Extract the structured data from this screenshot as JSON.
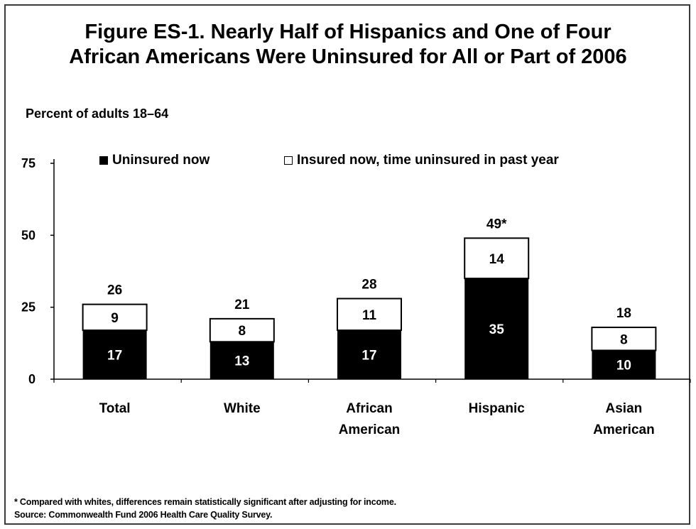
{
  "title_line1": "Figure ES-1. Nearly Half of Hispanics and One of Four",
  "title_line2": "African Americans Were Uninsured for All or Part of 2006",
  "subtitle": "Percent of adults 18–64",
  "footnote": "* Compared with whites, differences remain statistically significant after adjusting for income.",
  "source": "Source: Commonwealth Fund 2006 Health Care Quality Survey.",
  "colors": {
    "uninsured_now": "#000000",
    "insured_time_uninsured": "#ffffff",
    "axis": "#000000"
  },
  "chart_data": {
    "type": "bar",
    "stacked": true,
    "ylabel": "Percent of adults 18–64",
    "ylim": [
      0,
      75
    ],
    "yticks": [
      0,
      25,
      50,
      75
    ],
    "legend_position": "top",
    "categories": [
      [
        "Total"
      ],
      [
        "White"
      ],
      [
        "African",
        "American"
      ],
      [
        "Hispanic"
      ],
      [
        "Asian",
        "American"
      ]
    ],
    "series": [
      {
        "name": "Uninsured now",
        "values": [
          17,
          13,
          17,
          35,
          10
        ]
      },
      {
        "name": "Insured now, time uninsured in past year",
        "values": [
          9,
          8,
          11,
          14,
          8
        ]
      }
    ],
    "totals": [
      "26",
      "21",
      "28",
      "49*",
      "18"
    ]
  }
}
